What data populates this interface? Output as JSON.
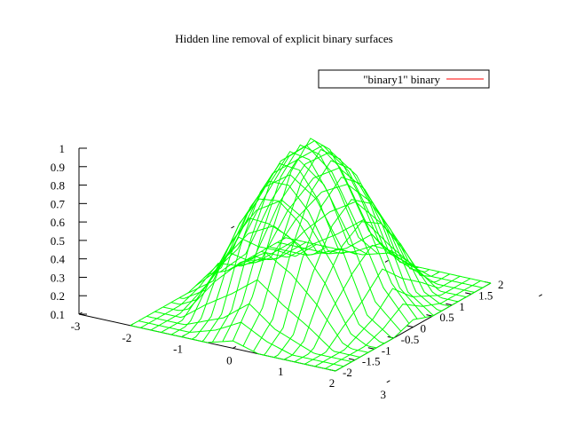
{
  "chart_data": {
    "type": "surface",
    "title": "Hidden line removal of explicit binary surfaces",
    "legend": {
      "label": "\"binary1\" binary",
      "position": "top-right",
      "color": "#ff0000"
    },
    "surface_color": "#00ff00",
    "function": "exp(-(x^2+y^2)/2)",
    "x_range": [
      -3,
      2
    ],
    "y_range": [
      -2,
      2
    ],
    "z_range": [
      0.1,
      1
    ],
    "x_ticks": [
      "-3",
      "-2",
      "-1",
      "0",
      "1",
      "2",
      "3"
    ],
    "y_ticks": [
      "-2",
      "-1.5",
      "-1",
      "-0.5",
      "0",
      "0.5",
      "1",
      "1.5",
      "2"
    ],
    "z_ticks": [
      "0.1",
      "0.2",
      "0.3",
      "0.4",
      "0.5",
      "0.6",
      "0.7",
      "0.8",
      "0.9",
      "1"
    ],
    "grid": {
      "x_lines": 21,
      "y_lines": 20
    },
    "series": [
      {
        "name": "\"binary1\" binary",
        "y": [
          -2,
          -1.5,
          -1,
          -0.5,
          0,
          0.5,
          1,
          1.5,
          2
        ],
        "x": [
          -2,
          -1.5,
          -1,
          -0.5,
          0,
          0.5,
          1,
          1.5,
          2
        ],
        "z": [
          [
            0.02,
            0.04,
            0.07,
            0.1,
            0.14,
            0.1,
            0.07,
            0.04,
            0.02
          ],
          [
            0.04,
            0.08,
            0.14,
            0.2,
            0.32,
            0.2,
            0.14,
            0.08,
            0.04
          ],
          [
            0.07,
            0.14,
            0.37,
            0.54,
            0.61,
            0.54,
            0.37,
            0.14,
            0.07
          ],
          [
            0.1,
            0.2,
            0.54,
            0.78,
            0.88,
            0.78,
            0.54,
            0.2,
            0.1
          ],
          [
            0.14,
            0.32,
            0.61,
            0.88,
            1.0,
            0.88,
            0.61,
            0.32,
            0.14
          ],
          [
            0.1,
            0.2,
            0.54,
            0.78,
            0.88,
            0.78,
            0.54,
            0.2,
            0.1
          ],
          [
            0.07,
            0.14,
            0.37,
            0.54,
            0.61,
            0.54,
            0.37,
            0.14,
            0.07
          ],
          [
            0.04,
            0.08,
            0.14,
            0.2,
            0.32,
            0.2,
            0.14,
            0.08,
            0.04
          ],
          [
            0.02,
            0.04,
            0.07,
            0.1,
            0.14,
            0.1,
            0.07,
            0.04,
            0.02
          ]
        ]
      }
    ]
  }
}
